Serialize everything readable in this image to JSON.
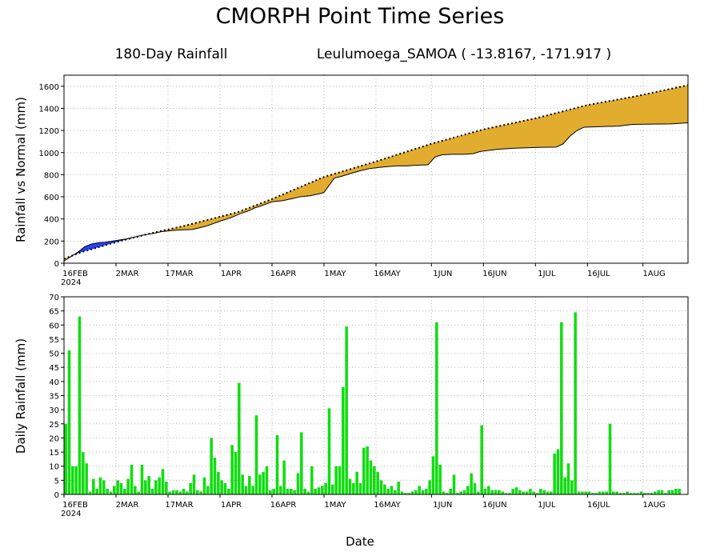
{
  "title": "CMORPH Point Time Series",
  "subtitle": {
    "period": "180-Day Rainfall",
    "location": "Leulumoega_SAMOA ( -13.8167, -171.917 )"
  },
  "xlabel": "Date",
  "colors": {
    "deficit": "#e2ac2f",
    "surplus": "#2b3ff5",
    "daily_bar": "#10dd10"
  },
  "chart_data": [
    {
      "type": "area",
      "ylabel": "Rainfall vs Normal (mm)",
      "xlim": [
        0,
        180
      ],
      "ylim": [
        0,
        1700
      ],
      "yticks": [
        0,
        200,
        400,
        600,
        800,
        1000,
        1200,
        1400,
        1600
      ],
      "xticks": [
        {
          "day": 0,
          "label": "16FEB",
          "sub": "2024"
        },
        {
          "day": 15,
          "label": "2MAR",
          "sub": ""
        },
        {
          "day": 30,
          "label": "17MAR",
          "sub": ""
        },
        {
          "day": 45,
          "label": "1APR",
          "sub": ""
        },
        {
          "day": 60,
          "label": "16APR",
          "sub": ""
        },
        {
          "day": 75,
          "label": "1MAY",
          "sub": ""
        },
        {
          "day": 90,
          "label": "16MAY",
          "sub": ""
        },
        {
          "day": 106,
          "label": "1JUN",
          "sub": ""
        },
        {
          "day": 121,
          "label": "16JUN",
          "sub": ""
        },
        {
          "day": 136,
          "label": "1JUL",
          "sub": ""
        },
        {
          "day": 151,
          "label": "16JUL",
          "sub": ""
        },
        {
          "day": 167,
          "label": "1AUG",
          "sub": ""
        }
      ],
      "series": [
        {
          "role": "normal",
          "x": [
            0,
            5,
            15,
            25,
            35,
            50,
            60,
            75,
            90,
            106,
            121,
            136,
            151,
            165,
            180
          ],
          "values": [
            40,
            100,
            190,
            270,
            340,
            460,
            580,
            780,
            920,
            1080,
            1210,
            1310,
            1430,
            1510,
            1610
          ]
        },
        {
          "role": "actual",
          "x": [
            0,
            2,
            4,
            6,
            8,
            10,
            12,
            14,
            16,
            18,
            20,
            23,
            26,
            28,
            31,
            33,
            37,
            41,
            45,
            48,
            51,
            53,
            55,
            57,
            60,
            63,
            66,
            68,
            71,
            74,
            75,
            78,
            80,
            83,
            86,
            88,
            92,
            96,
            99,
            101,
            105,
            107,
            109,
            112,
            115,
            118,
            120,
            125,
            130,
            135,
            138,
            142,
            144,
            146,
            148,
            150,
            155,
            160,
            164,
            170,
            175,
            180
          ],
          "values": [
            20,
            60,
            100,
            150,
            175,
            185,
            190,
            200,
            210,
            220,
            235,
            255,
            270,
            285,
            295,
            300,
            305,
            335,
            380,
            410,
            450,
            470,
            500,
            520,
            555,
            565,
            585,
            600,
            610,
            630,
            640,
            770,
            785,
            815,
            840,
            855,
            870,
            880,
            880,
            885,
            890,
            960,
            980,
            985,
            985,
            990,
            1010,
            1030,
            1040,
            1045,
            1048,
            1050,
            1080,
            1150,
            1200,
            1230,
            1235,
            1240,
            1255,
            1258,
            1260,
            1270
          ]
        }
      ]
    },
    {
      "type": "bar",
      "ylabel": "Daily Rainfall (mm)",
      "xlim": [
        0,
        180
      ],
      "ylim": [
        0,
        70
      ],
      "yticks": [
        0,
        5,
        10,
        15,
        20,
        25,
        30,
        35,
        40,
        45,
        50,
        55,
        60,
        65,
        70
      ],
      "xticks": [
        {
          "day": 0,
          "label": "16FEB",
          "sub": "2024"
        },
        {
          "day": 15,
          "label": "2MAR",
          "sub": ""
        },
        {
          "day": 30,
          "label": "17MAR",
          "sub": ""
        },
        {
          "day": 45,
          "label": "1APR",
          "sub": ""
        },
        {
          "day": 60,
          "label": "16APR",
          "sub": ""
        },
        {
          "day": 75,
          "label": "1MAY",
          "sub": ""
        },
        {
          "day": 90,
          "label": "16MAY",
          "sub": ""
        },
        {
          "day": 106,
          "label": "1JUN",
          "sub": ""
        },
        {
          "day": 121,
          "label": "16JUN",
          "sub": ""
        },
        {
          "day": 136,
          "label": "1JUL",
          "sub": ""
        },
        {
          "day": 151,
          "label": "16JUL",
          "sub": ""
        },
        {
          "day": 167,
          "label": "1AUG",
          "sub": ""
        }
      ],
      "values": [
        25.0,
        51.0,
        10.0,
        10.0,
        63.0,
        15.0,
        11.0,
        1.0,
        5.5,
        2.0,
        6.0,
        5.0,
        2.0,
        1.0,
        3.0,
        5.0,
        4.0,
        2.0,
        5.5,
        10.5,
        3.0,
        1.0,
        10.5,
        5.0,
        6.5,
        2.0,
        5.0,
        6.0,
        9.0,
        4.5,
        1.0,
        1.5,
        1.5,
        1.0,
        2.0,
        1.0,
        4.0,
        7.0,
        1.5,
        1.0,
        6.0,
        3.0,
        20.0,
        13.0,
        8.0,
        5.0,
        4.0,
        2.0,
        17.5,
        15.0,
        39.5,
        7.0,
        3.0,
        6.5,
        3.0,
        28.0,
        7.0,
        8.0,
        10.0,
        1.5,
        2.0,
        21.0,
        3.0,
        12.0,
        2.0,
        2.0,
        1.5,
        7.5,
        22.0,
        2.0,
        1.0,
        10.0,
        2.0,
        2.5,
        3.0,
        4.0,
        30.5,
        3.5,
        10.0,
        10.0,
        38.0,
        59.5,
        5.5,
        4.0,
        8.0,
        4.0,
        16.5,
        17.0,
        12.0,
        10.0,
        8.0,
        5.0,
        3.5,
        2.0,
        3.0,
        1.5,
        4.5,
        1.0,
        0.5,
        0.5,
        1.0,
        1.5,
        3.0,
        1.5,
        2.0,
        5.0,
        13.5,
        61.0,
        10.5,
        1.0,
        0.5,
        2.0,
        7.0,
        0.5,
        1.0,
        1.5,
        3.0,
        7.5,
        4.0,
        1.0,
        24.5,
        2.0,
        3.0,
        1.5,
        1.5,
        1.5,
        1.0,
        0.5,
        0.5,
        2.0,
        2.5,
        1.5,
        1.0,
        1.0,
        2.0,
        1.0,
        0.5,
        2.0,
        1.5,
        1.0,
        1.0,
        14.5,
        16.0,
        61.0,
        6.0,
        11.0,
        5.0,
        64.5,
        1.0,
        1.0,
        1.0,
        1.0,
        0.5,
        0.5,
        1.0,
        1.0,
        1.0,
        25.0,
        1.0,
        1.0,
        0.5,
        0.5,
        1.0,
        0.5,
        0.5,
        0.5,
        1.0,
        0.5,
        0.5,
        0.5,
        1.0,
        1.5,
        1.5,
        0.5,
        1.5,
        1.5,
        2.0,
        2.0
      ]
    }
  ]
}
